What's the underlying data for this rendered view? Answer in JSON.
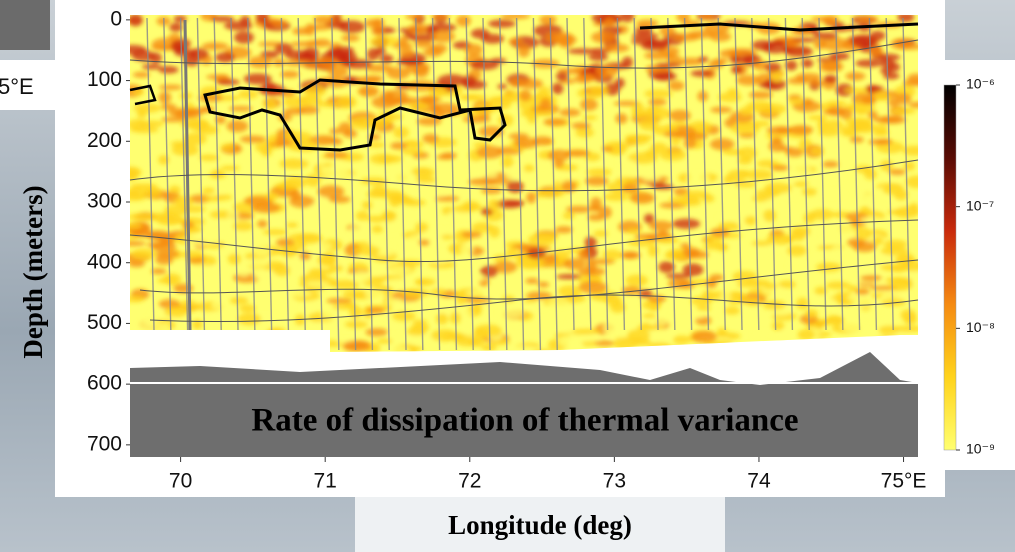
{
  "chart_data": {
    "type": "heatmap",
    "annotation": "Rate of dissipation of thermal variance",
    "xlabel": "Longitude (deg)",
    "ylabel": "Depth (meters)",
    "xlim": [
      69.65,
      75.1
    ],
    "ylim": [
      -8,
      720
    ],
    "y_inverted": true,
    "xticks": [
      70,
      71,
      72,
      73,
      74,
      {
        "value": 75,
        "label": "75°E"
      }
    ],
    "yticks": [
      0,
      100,
      200,
      300,
      400,
      500,
      600,
      700
    ],
    "colorbar": {
      "log": true,
      "clim": [
        1e-09,
        1e-06
      ],
      "ticks": [
        {
          "value": 1e-06,
          "label": "10⁻⁶"
        },
        {
          "value": 1e-07,
          "label": "10⁻⁷"
        },
        {
          "value": 1e-08,
          "label": "10⁻⁸"
        },
        {
          "value": 1e-09,
          "label": "10⁻⁹"
        }
      ],
      "colors": [
        "#ffff70",
        "#ffd31c",
        "#f58a12",
        "#c92a0c",
        "#5a0c05",
        "#000000"
      ]
    }
  },
  "background_label": "5°E"
}
